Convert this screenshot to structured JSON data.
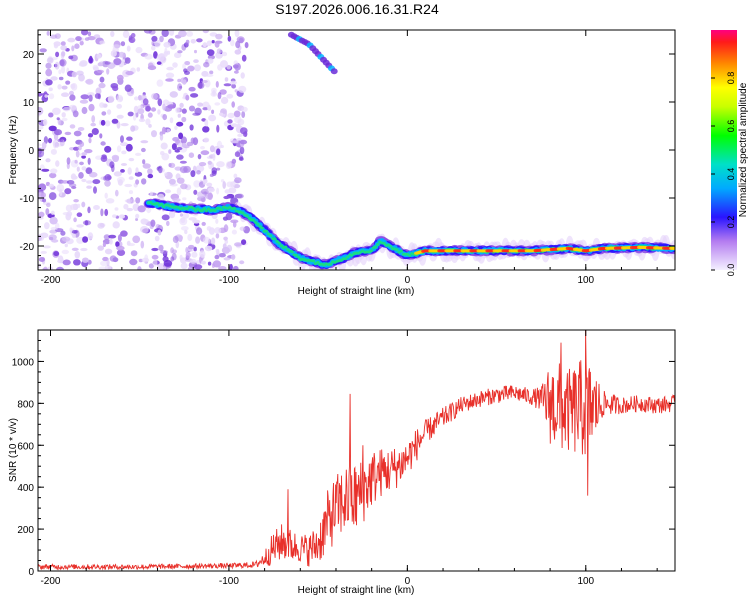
{
  "title": "S197.2026.006.16.31.R24",
  "colors": {
    "signal": "#e8302a",
    "axis": "#000000",
    "background": "#ffffff"
  },
  "chart_data": [
    {
      "type": "heatmap",
      "title": "",
      "xlabel": "Height of straight line (km)",
      "ylabel": "Frequency (Hz)",
      "xlim": [
        -207,
        150
      ],
      "ylim": [
        -25,
        25
      ],
      "x_ticks": [
        -200,
        -100,
        0,
        100
      ],
      "y_ticks": [
        -20,
        -10,
        0,
        10,
        20
      ],
      "colorbar": {
        "label": "Normalized spectral amplitude",
        "range": [
          0,
          1
        ],
        "ticks": [
          "0.0",
          "0.2",
          "0.4",
          "0.6",
          "0.8"
        ]
      },
      "ridge": {
        "description_series": "dominant frequency track (Hz) vs height (km)",
        "x": [
          -145,
          -130,
          -110,
          -100,
          -92,
          -85,
          -78,
          -72,
          -66,
          -60,
          -55,
          -50,
          -45,
          -40,
          -35,
          -30,
          -25,
          -20,
          -15,
          -10,
          -5,
          0,
          10,
          30,
          50,
          70,
          90,
          100,
          110,
          130,
          150
        ],
        "y": [
          -11,
          -12,
          -12.5,
          -12,
          -13,
          -15,
          -17.5,
          -19.5,
          -21,
          -22.5,
          -23,
          -23.5,
          -24,
          -23,
          -22.5,
          -21.5,
          -21,
          -21,
          -19,
          -20,
          -21,
          -22,
          -21,
          -21,
          -21,
          -21,
          -20.5,
          -21,
          -20.5,
          -20.3,
          -20.5
        ]
      },
      "upper_track": {
        "x": [
          -65,
          -60,
          -55,
          -50,
          -45,
          -40
        ],
        "y": [
          24,
          23,
          22,
          20,
          18,
          16
        ]
      },
      "noise_region_km": [
        -207,
        -95
      ]
    },
    {
      "type": "line",
      "title": "",
      "xlabel": "Height of straight line (km)",
      "ylabel": "SNR (10 * v/v)",
      "xlim": [
        -207,
        150
      ],
      "ylim": [
        0,
        1150
      ],
      "x_ticks": [
        -200,
        -100,
        0,
        100
      ],
      "y_ticks": [
        0,
        200,
        400,
        600,
        800,
        1000
      ],
      "series": [
        {
          "name": "SNR",
          "color": "#e8302a",
          "envelope_x": [
            -207,
            -150,
            -100,
            -85,
            -80,
            -75,
            -70,
            -65,
            -60,
            -55,
            -50,
            -45,
            -40,
            -35,
            -30,
            -25,
            -20,
            -15,
            -10,
            -5,
            0,
            5,
            10,
            20,
            30,
            40,
            50,
            60,
            70,
            75,
            80,
            85,
            90,
            95,
            100,
            105,
            110,
            120,
            130,
            140,
            150
          ],
          "envelope_mean": [
            20,
            20,
            25,
            30,
            60,
            110,
            140,
            120,
            110,
            100,
            130,
            230,
            300,
            340,
            340,
            380,
            440,
            470,
            480,
            500,
            540,
            600,
            660,
            730,
            790,
            820,
            840,
            850,
            830,
            820,
            800,
            780,
            760,
            770,
            780,
            780,
            800,
            790,
            800,
            790,
            800
          ],
          "envelope_amp": [
            12,
            12,
            12,
            15,
            40,
            80,
            90,
            80,
            70,
            80,
            100,
            150,
            160,
            170,
            180,
            160,
            140,
            120,
            110,
            100,
            90,
            80,
            60,
            50,
            40,
            40,
            40,
            40,
            40,
            60,
            200,
            220,
            200,
            230,
            250,
            180,
            60,
            40,
            40,
            40,
            40
          ],
          "peaks": [
            {
              "x": -67,
              "y": 390
            },
            {
              "x": -32,
              "y": 845
            },
            {
              "x": -25,
              "y": 600
            },
            {
              "x": 86,
              "y": 1090
            },
            {
              "x": 100,
              "y": 1150
            },
            {
              "x": 101,
              "y": 360
            }
          ]
        }
      ]
    }
  ]
}
